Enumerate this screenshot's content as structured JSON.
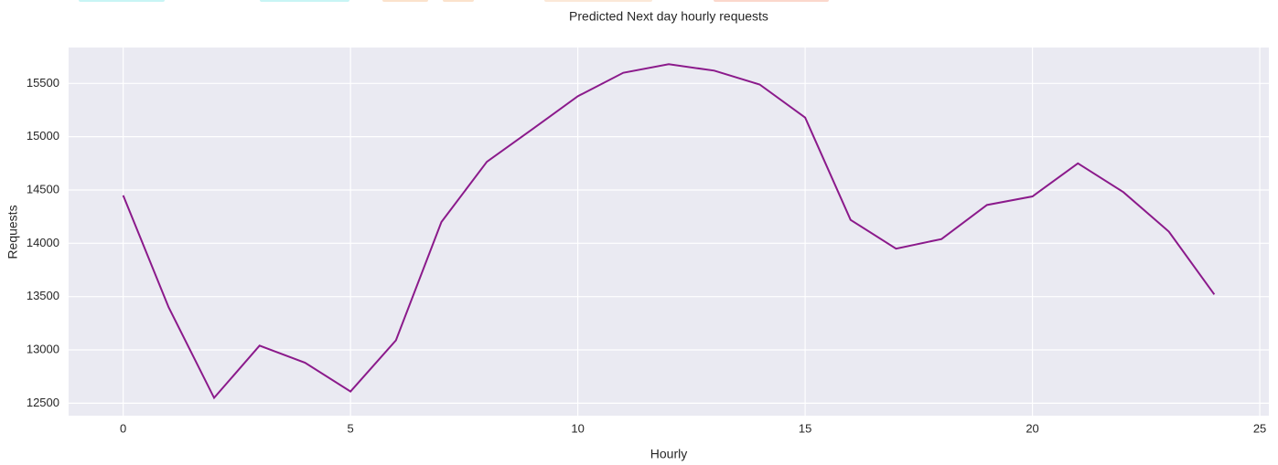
{
  "chart_data": {
    "type": "line",
    "title": "Predicted Next day hourly requests",
    "x_label": "Hourly",
    "y_label": "Requests",
    "x": [
      0,
      1,
      2,
      3,
      4,
      5,
      6,
      7,
      8,
      9,
      10,
      11,
      12,
      13,
      14,
      15,
      16,
      17,
      18,
      19,
      20,
      21,
      22,
      23,
      24
    ],
    "series": [
      {
        "color": "#8b1a8b",
        "values": [
          14450,
          13400,
          12550,
          13040,
          12880,
          12610,
          13090,
          14200,
          14765,
          15070,
          15380,
          15600,
          15680,
          15620,
          15490,
          15180,
          14220,
          13950,
          14040,
          14360,
          14440,
          14750,
          14480,
          14110,
          13520
        ]
      }
    ],
    "xlim": [
      -1.2,
      25.2
    ],
    "xticks": [
      0,
      5,
      10,
      15,
      20,
      25
    ],
    "ylim": [
      12383,
      15837
    ],
    "yticks": [
      12500,
      13000,
      13500,
      14000,
      14500,
      15000,
      15500
    ],
    "grid": true
  }
}
